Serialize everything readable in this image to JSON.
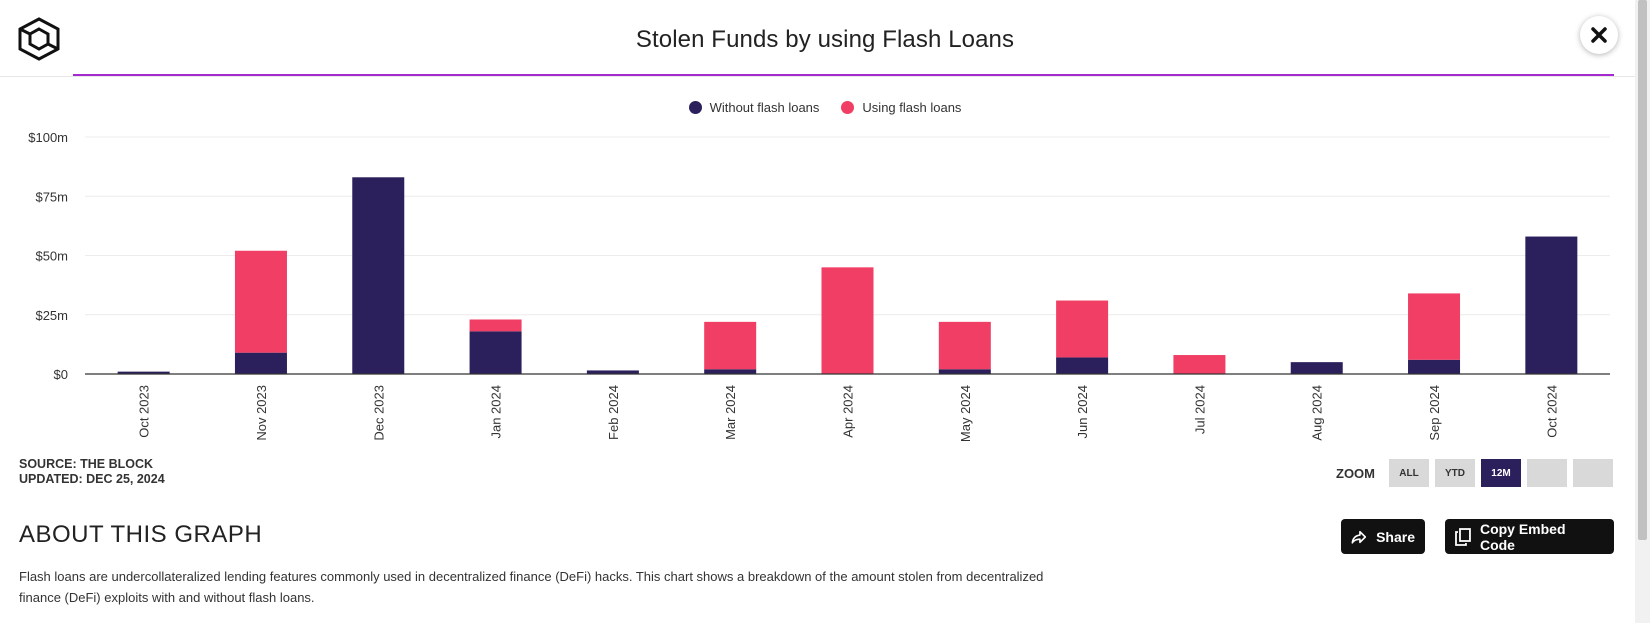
{
  "header": {
    "title": "Stolen Funds by using Flash Loans",
    "logo_icon": "cube-logo-icon",
    "close_icon": "close-icon",
    "accent_color": "#a42ad0"
  },
  "legend": {
    "items": [
      {
        "label": "Without flash loans",
        "color": "#2b1f5c"
      },
      {
        "label": "Using flash loans",
        "color": "#f03e64"
      }
    ]
  },
  "chart_data": {
    "type": "bar",
    "stacked": true,
    "title": "Stolen Funds by using Flash Loans",
    "categories": [
      "Oct 2023",
      "Nov 2023",
      "Dec 2023",
      "Jan 2024",
      "Feb 2024",
      "Mar 2024",
      "Apr 2024",
      "May 2024",
      "Jun 2024",
      "Jul 2024",
      "Aug 2024",
      "Sep 2024",
      "Oct 2024"
    ],
    "series": [
      {
        "name": "Without flash loans",
        "color": "#2b1f5c",
        "values": [
          1,
          9,
          83,
          18,
          1.5,
          2,
          0,
          2,
          7,
          0,
          5,
          6,
          58
        ]
      },
      {
        "name": "Using flash loans",
        "color": "#f03e64",
        "values": [
          0,
          43,
          0,
          5,
          0,
          20,
          45,
          20,
          24,
          8,
          0,
          28,
          0
        ]
      }
    ],
    "yticks": [
      "$0",
      "$25m",
      "$50m",
      "$75m",
      "$100m"
    ],
    "ytick_values": [
      0,
      25,
      50,
      75,
      100
    ],
    "ylim": [
      0,
      100
    ],
    "grid": true,
    "legend_position": "top-center"
  },
  "footer": {
    "source": "SOURCE: THE BLOCK",
    "updated": "UPDATED: DEC 25, 2024"
  },
  "zoom": {
    "label": "ZOOM",
    "buttons": [
      "ALL",
      "YTD",
      "12M",
      "",
      ""
    ],
    "active": "12M"
  },
  "about": {
    "title": "ABOUT THIS GRAPH",
    "description": "Flash loans are undercollateralized lending features commonly used in decentralized finance (DeFi) hacks. This chart shows a breakdown of the amount stolen from decentralized finance (DeFi) exploits with and without flash loans."
  },
  "actions": {
    "share_label": "Share",
    "share_icon": "share-arrow-icon",
    "embed_label": "Copy Embed Code",
    "embed_icon": "copy-icon"
  }
}
